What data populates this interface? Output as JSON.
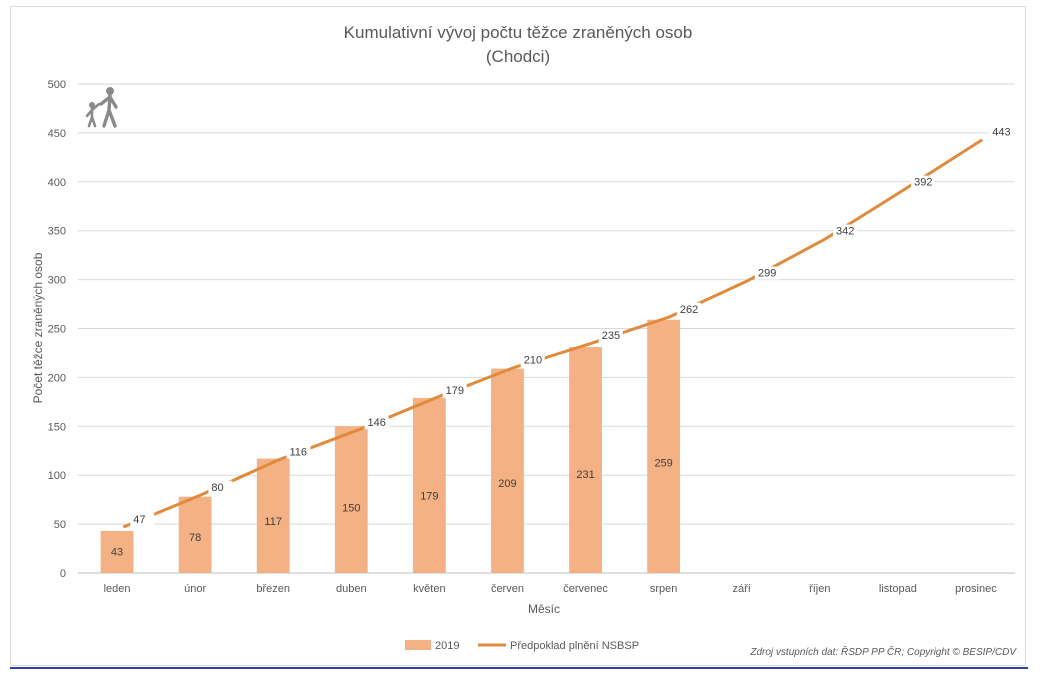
{
  "chart_data": {
    "type": "bar",
    "title": "Kumulativní vývoj počtu těžce zraněných osob",
    "subtitle": "(Chodci)",
    "xlabel": "Měsíc",
    "ylabel": "Počet těžce zraněných osob",
    "ylim": [
      0,
      500
    ],
    "yticks": [
      0,
      50,
      100,
      150,
      200,
      250,
      300,
      350,
      400,
      450,
      500
    ],
    "grid": true,
    "legend_position": "bottom",
    "categories": [
      "leden",
      "únor",
      "březen",
      "duben",
      "květen",
      "červen",
      "červenec",
      "srpen",
      "září",
      "říjen",
      "listopad",
      "prosinec"
    ],
    "series": [
      {
        "name": "2019",
        "kind": "bar",
        "color": "#f4b183",
        "values": [
          43,
          78,
          117,
          150,
          179,
          209,
          231,
          259,
          null,
          null,
          null,
          null
        ]
      },
      {
        "name": "Předpoklad plnění NSBSP",
        "kind": "line",
        "color": "#e08a3c",
        "values": [
          47,
          80,
          116,
          146,
          179,
          210,
          235,
          262,
          299,
          342,
          392,
          443
        ]
      }
    ],
    "source_note": "Zdroj vstupních dat: ŘSDP PP ČR; Copyright © BESIP/CDV"
  },
  "icons": {
    "pedestrian": "pedestrians-icon"
  }
}
